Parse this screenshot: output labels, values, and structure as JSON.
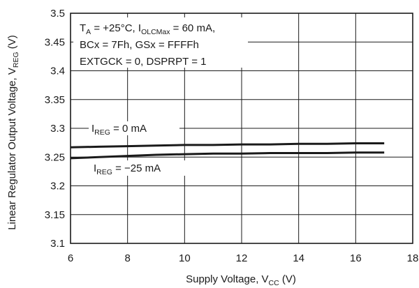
{
  "chart_data": {
    "type": "line",
    "xlabel": {
      "main": "Supply Voltage, V",
      "sub": "CC",
      "unit": " (V)"
    },
    "ylabel": {
      "main": "Linear Regulator Output Voltage, V",
      "sub": "REG",
      "unit": " (V)"
    },
    "xlim": [
      6,
      18
    ],
    "ylim": [
      3.1,
      3.5
    ],
    "x_ticks": [
      "6",
      "8",
      "10",
      "12",
      "14",
      "16",
      "18"
    ],
    "y_ticks": [
      "3.1",
      "3.15",
      "3.2",
      "3.25",
      "3.3",
      "3.35",
      "3.4",
      "3.45",
      "3.5"
    ],
    "grid": true,
    "conditions": {
      "line1": {
        "a": "T",
        "a_sub": "A",
        "b": " = +25°C, I",
        "b_sub": "OLCMax",
        "c": " = 60 mA,"
      },
      "line2": "BCx = 7Fh, GSx = FFFFh",
      "line3": "EXTGCK = 0, DSPRPT = 1"
    },
    "series": [
      {
        "name": {
          "main": "I",
          "sub": "REG",
          "rest": " = 0 mA"
        },
        "x": [
          6,
          7,
          8,
          9,
          10,
          11,
          12,
          13,
          14,
          15,
          16,
          17
        ],
        "values": [
          3.267,
          3.268,
          3.269,
          3.27,
          3.271,
          3.271,
          3.272,
          3.272,
          3.273,
          3.273,
          3.274,
          3.274
        ]
      },
      {
        "name": {
          "main": "I",
          "sub": "REG",
          "rest": " = −25 mA"
        },
        "x": [
          6,
          7,
          8,
          9,
          10,
          11,
          12,
          13,
          14,
          15,
          16,
          17
        ],
        "values": [
          3.248,
          3.25,
          3.252,
          3.254,
          3.255,
          3.256,
          3.256,
          3.257,
          3.257,
          3.257,
          3.258,
          3.258
        ]
      }
    ]
  }
}
